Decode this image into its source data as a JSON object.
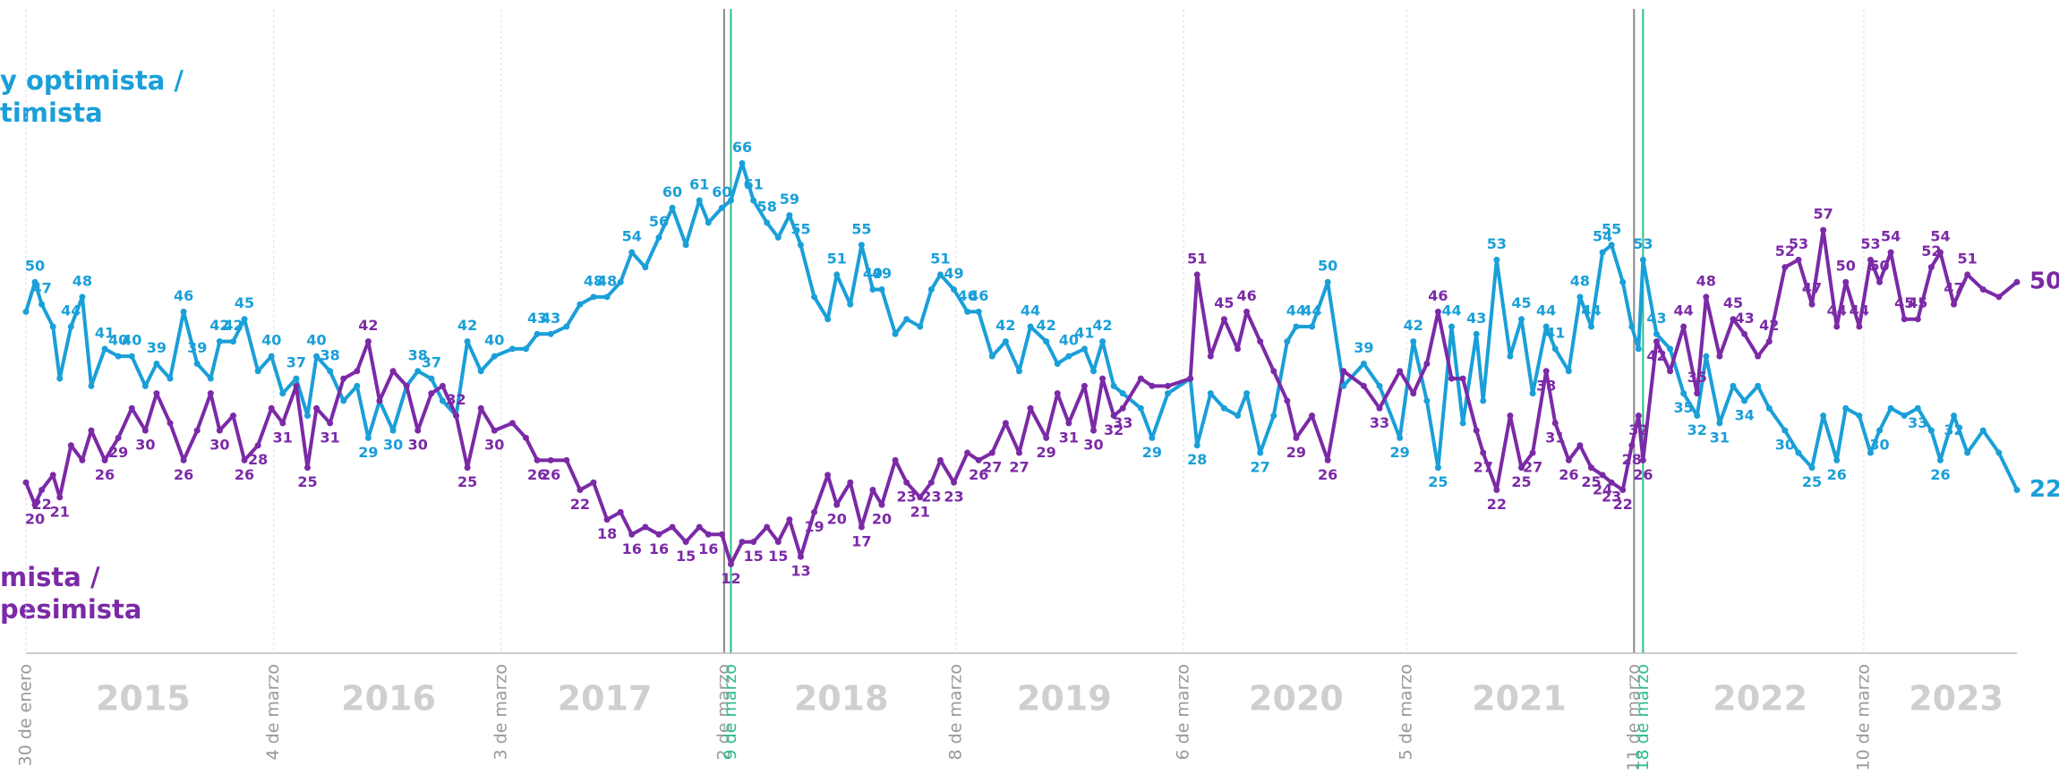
{
  "chart_data": {
    "type": "line",
    "x": [
      2015.08,
      2015.12,
      2015.15,
      2015.2,
      2015.23,
      2015.28,
      2015.33,
      2015.37,
      2015.43,
      2015.49,
      2015.55,
      2015.61,
      2015.66,
      2015.72,
      2015.78,
      2015.84,
      2015.9,
      2015.94,
      2016.0,
      2016.05,
      2016.11,
      2016.17,
      2016.22,
      2016.28,
      2016.33,
      2016.37,
      2016.43,
      2016.49,
      2016.55,
      2016.6,
      2016.65,
      2016.71,
      2016.77,
      2016.82,
      2016.88,
      2016.93,
      2016.99,
      2017.04,
      2017.1,
      2017.16,
      2017.24,
      2017.3,
      2017.35,
      2017.41,
      2017.48,
      2017.54,
      2017.6,
      2017.66,
      2017.72,
      2017.77,
      2017.83,
      2017.89,
      2017.95,
      2018.01,
      2018.07,
      2018.11,
      2018.17,
      2018.21,
      2018.26,
      2018.31,
      2018.37,
      2018.42,
      2018.47,
      2018.52,
      2018.58,
      2018.64,
      2018.68,
      2018.74,
      2018.79,
      2018.84,
      2018.88,
      2018.94,
      2018.99,
      2019.05,
      2019.1,
      2019.14,
      2019.2,
      2019.26,
      2019.31,
      2019.37,
      2019.43,
      2019.49,
      2019.54,
      2019.61,
      2019.66,
      2019.71,
      2019.78,
      2019.82,
      2019.86,
      2019.91,
      2019.95,
      2020.03,
      2020.08,
      2020.15,
      2020.25,
      2020.28,
      2020.34,
      2020.4,
      2020.46,
      2020.5,
      2020.56,
      2020.62,
      2020.68,
      2020.72,
      2020.79,
      2020.86,
      2020.93,
      2021.02,
      2021.09,
      2021.18,
      2021.24,
      2021.3,
      2021.35,
      2021.41,
      2021.46,
      2021.52,
      2021.55,
      2021.61,
      2021.67,
      2021.72,
      2021.77,
      2021.83,
      2021.87,
      2021.93,
      2021.98,
      2022.03,
      2022.08,
      2022.12,
      2022.17,
      2022.21,
      2022.24,
      2022.26,
      2022.32,
      2022.38,
      2022.44,
      2022.5,
      2022.54,
      2022.6,
      2022.66,
      2022.71,
      2022.77,
      2022.82,
      2022.89,
      2022.95,
      2023.01,
      2023.06,
      2023.12,
      2023.16,
      2023.22,
      2023.27,
      2023.31,
      2023.36,
      2023.42,
      2023.48,
      2023.54,
      2023.58,
      2023.64,
      2023.7,
      2023.77,
      2023.84,
      2023.92
    ],
    "series": [
      {
        "name": [
          "y optimista /",
          "timista"
        ],
        "color": "#1a9fd8",
        "values": [
          46,
          50,
          47,
          44,
          37,
          44,
          48,
          36,
          41,
          40,
          40,
          36,
          39,
          37,
          46,
          39,
          37,
          42,
          42,
          45,
          38,
          40,
          35,
          37,
          32,
          40,
          38,
          34,
          36,
          29,
          34,
          30,
          36,
          38,
          37,
          34,
          32,
          42,
          38,
          40,
          41,
          41,
          43,
          43,
          44,
          47,
          48,
          48,
          50,
          54,
          52,
          56,
          60,
          55,
          61,
          58,
          60,
          61,
          66,
          61,
          58,
          56,
          59,
          55,
          48,
          45,
          51,
          47,
          55,
          49,
          49,
          43,
          45,
          44,
          49,
          51,
          49,
          46,
          46,
          40,
          42,
          38,
          44,
          42,
          39,
          40,
          41,
          38,
          42,
          36,
          35,
          33,
          29,
          35,
          37,
          28,
          35,
          33,
          32,
          35,
          27,
          32,
          42,
          44,
          44,
          50,
          36,
          39,
          36,
          29,
          42,
          34,
          25,
          44,
          31,
          43,
          34,
          53,
          40,
          45,
          35,
          44,
          41,
          38,
          48,
          44,
          54,
          55,
          50,
          44,
          41,
          53,
          43,
          41,
          35,
          32,
          40,
          31,
          36,
          34,
          36,
          33,
          30,
          27,
          25,
          32,
          26,
          33,
          32,
          27,
          30,
          33,
          32,
          33,
          30,
          26,
          32,
          27,
          30,
          27,
          22
        ],
        "value_labels": [
          null,
          "50",
          "47",
          null,
          null,
          "44",
          "48",
          null,
          "41",
          "40",
          "40",
          null,
          "39",
          null,
          "46",
          "39",
          null,
          "42",
          "42",
          "45",
          null,
          "40",
          null,
          "37",
          null,
          "40",
          "38",
          null,
          null,
          "29",
          null,
          "30",
          null,
          "38",
          "37",
          null,
          null,
          "42",
          null,
          "40",
          null,
          null,
          "43",
          "43",
          null,
          null,
          "48",
          "48",
          null,
          "54",
          null,
          "56",
          "60",
          null,
          "61",
          null,
          "60",
          null,
          "66",
          "61",
          "58",
          null,
          "59",
          "55",
          null,
          null,
          "51",
          null,
          "55",
          "49",
          "49",
          null,
          null,
          null,
          null,
          "51",
          "49",
          "46",
          "46",
          null,
          "42",
          null,
          "44",
          "42",
          null,
          "40",
          "41",
          null,
          "42",
          null,
          null,
          null,
          "29",
          null,
          null,
          "28",
          null,
          null,
          null,
          null,
          "27",
          null,
          null,
          "44",
          "44",
          "50",
          null,
          "39",
          null,
          "29",
          "42",
          null,
          "25",
          "44",
          null,
          "43",
          null,
          "53",
          null,
          "45",
          null,
          "44",
          "41",
          null,
          "48",
          "44",
          "54",
          "55",
          null,
          null,
          null,
          "53",
          "43",
          null,
          "35",
          "32",
          null,
          "31",
          null,
          "34",
          null,
          null,
          "30",
          null,
          "25",
          null,
          "26",
          null,
          null,
          null,
          "30",
          null,
          null,
          "33",
          null,
          "26",
          "32",
          null,
          null,
          null,
          "22"
        ]
      },
      {
        "name": [
          "mista /",
          "pesimista"
        ],
        "color": "#7b2aa6",
        "values": [
          23,
          20,
          22,
          24,
          21,
          28,
          26,
          30,
          26,
          29,
          33,
          30,
          35,
          31,
          26,
          30,
          35,
          30,
          32,
          26,
          28,
          33,
          31,
          36,
          25,
          33,
          31,
          37,
          38,
          42,
          34,
          38,
          36,
          30,
          35,
          36,
          32,
          25,
          33,
          30,
          31,
          29,
          26,
          26,
          26,
          22,
          23,
          18,
          19,
          16,
          17,
          16,
          17,
          15,
          17,
          16,
          16,
          12,
          15,
          15,
          17,
          15,
          18,
          13,
          19,
          24,
          20,
          23,
          17,
          22,
          20,
          26,
          23,
          21,
          23,
          26,
          23,
          27,
          26,
          27,
          31,
          27,
          33,
          29,
          35,
          31,
          36,
          30,
          37,
          32,
          33,
          37,
          36,
          36,
          37,
          51,
          40,
          45,
          41,
          46,
          42,
          38,
          34,
          29,
          32,
          26,
          38,
          36,
          33,
          38,
          35,
          39,
          46,
          37,
          37,
          30,
          27,
          22,
          32,
          25,
          27,
          38,
          31,
          26,
          28,
          25,
          24,
          23,
          22,
          28,
          32,
          26,
          42,
          38,
          44,
          35,
          48,
          40,
          45,
          43,
          40,
          42,
          52,
          53,
          47,
          57,
          44,
          50,
          44,
          53,
          50,
          54,
          45,
          45,
          52,
          54,
          47,
          51,
          49,
          48,
          50
        ],
        "value_labels": [
          null,
          "20",
          "22",
          null,
          "21",
          null,
          null,
          null,
          "26",
          "29",
          null,
          "30",
          null,
          null,
          "26",
          null,
          null,
          "30",
          null,
          "26",
          "28",
          null,
          "31",
          null,
          "25",
          null,
          "31",
          null,
          null,
          "42",
          null,
          null,
          null,
          "30",
          null,
          null,
          "32",
          "25",
          null,
          "30",
          null,
          null,
          "26",
          "26",
          null,
          "22",
          null,
          "18",
          null,
          "16",
          null,
          "16",
          null,
          "15",
          null,
          "16",
          null,
          "12",
          null,
          "15",
          null,
          "15",
          null,
          "13",
          "19",
          null,
          "20",
          null,
          "17",
          null,
          "20",
          null,
          "23",
          "21",
          "23",
          null,
          "23",
          null,
          "26",
          "27",
          null,
          "27",
          null,
          "29",
          null,
          "31",
          null,
          "30",
          null,
          "32",
          "33",
          null,
          null,
          null,
          null,
          "51",
          null,
          "45",
          null,
          "46",
          null,
          null,
          null,
          "29",
          null,
          "26",
          null,
          null,
          "33",
          null,
          null,
          null,
          "46",
          null,
          null,
          null,
          "27",
          "22",
          null,
          "25",
          "27",
          "38",
          "31",
          "26",
          null,
          "25",
          "24",
          "23",
          "22",
          "28",
          "32",
          "26",
          "42",
          null,
          "44",
          "35",
          "48",
          null,
          "45",
          "43",
          null,
          "42",
          "52",
          "53",
          "47",
          "57",
          "44",
          "50",
          "44",
          "53",
          "50",
          "54",
          "45",
          "45",
          "52",
          "54",
          "47",
          "51",
          null,
          null,
          "50"
        ]
      }
    ],
    "xlim": [
      2015.08,
      2023.92
    ],
    "ylim": [
      0,
      88
    ],
    "xticks": [
      {
        "value": 2015.08,
        "label": "30 de enero"
      },
      {
        "value": 2016.18,
        "label": "4 de marzo"
      },
      {
        "value": 2017.19,
        "label": "3 de marzo"
      },
      {
        "value": 2018.18,
        "label": "2 de marzo",
        "color": "#8a8a8a"
      },
      {
        "value": 2018.21,
        "label": "9 de marzo",
        "color": "#2bbf8a"
      },
      {
        "value": 2019.21,
        "label": "8 de marzo"
      },
      {
        "value": 2020.22,
        "label": "6 de marzo"
      },
      {
        "value": 2021.21,
        "label": "5 de marzo"
      },
      {
        "value": 2022.22,
        "label": "11 de marzo",
        "color": "#8a8a8a"
      },
      {
        "value": 2022.26,
        "label": "18 de marzo",
        "color": "#2bbf8a"
      },
      {
        "value": 2023.24,
        "label": "10 de marzo"
      }
    ],
    "year_ticks": [
      {
        "value": 2015.6,
        "label": "2015"
      },
      {
        "value": 2016.69,
        "label": "2016"
      },
      {
        "value": 2017.65,
        "label": "2017"
      },
      {
        "value": 2018.7,
        "label": "2018"
      },
      {
        "value": 2019.69,
        "label": "2019"
      },
      {
        "value": 2020.72,
        "label": "2020"
      },
      {
        "value": 2021.71,
        "label": "2021"
      },
      {
        "value": 2022.78,
        "label": "2022"
      },
      {
        "value": 2023.65,
        "label": "2023"
      }
    ]
  }
}
